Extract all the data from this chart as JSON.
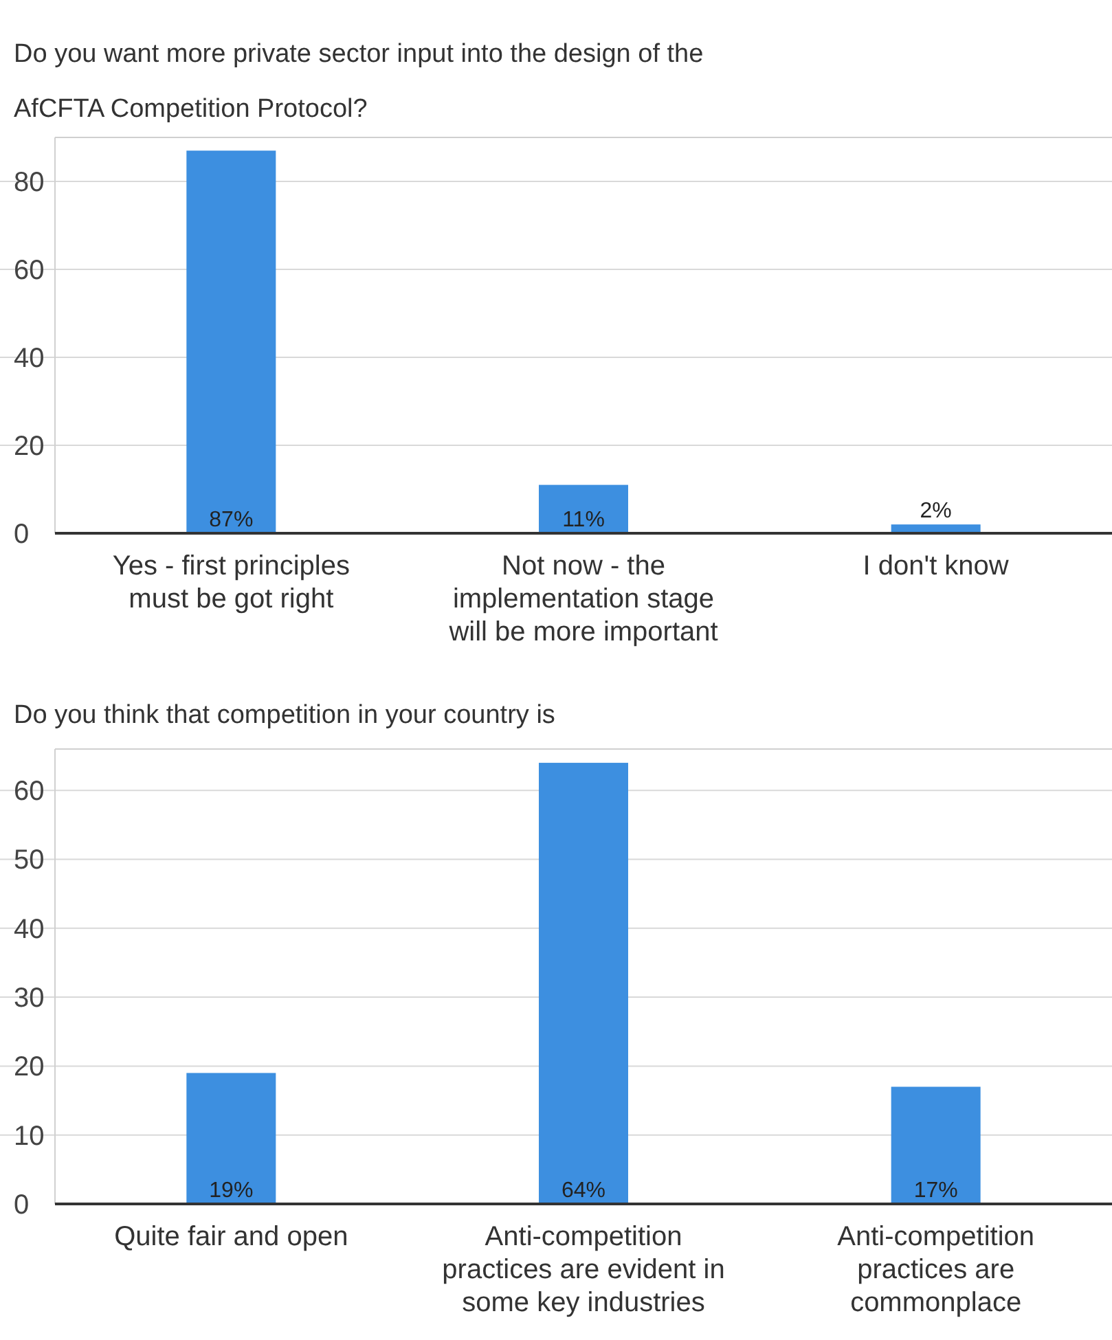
{
  "chart_data": [
    {
      "type": "bar",
      "title": "Do you want more private sector input into the design of the AfCFTA Competition Protocol?",
      "categories": [
        "Yes - first principles must be got right",
        "Not now - the implementation stage will be more important",
        "I don't know"
      ],
      "values": [
        87,
        11,
        2
      ],
      "value_labels": [
        "87%",
        "11%",
        "2%"
      ],
      "color": "#3d8fe0",
      "ylim": [
        0,
        90
      ],
      "yticks": [
        0,
        20,
        40,
        60,
        80
      ],
      "grid": "y"
    },
    {
      "type": "bar",
      "title": "Do you think that competition in your country is",
      "categories": [
        "Quite fair and open",
        "Anti-competition practices are evident in some key industries",
        "Anti-competition practices are commonplace"
      ],
      "values": [
        19,
        64,
        17
      ],
      "value_labels": [
        "19%",
        "64%",
        "17%"
      ],
      "color": "#3d8fe0",
      "ylim": [
        0,
        66
      ],
      "yticks": [
        0,
        10,
        20,
        30,
        40,
        50,
        60
      ],
      "grid": "y"
    }
  ]
}
